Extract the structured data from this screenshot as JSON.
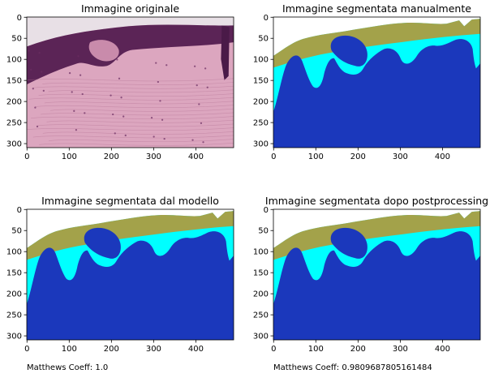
{
  "figure": {
    "colors": {
      "background": "#e8e0e6",
      "ground": "#1b38bc",
      "epidermis": "#00ffff",
      "surface": "#a3a24a",
      "tissue_light": "#dca6bf",
      "tissue_dark": "#5b2456"
    },
    "panels": [
      {
        "title": "Immagine originale",
        "kind": "photo",
        "xticks": [
          "0",
          "100",
          "200",
          "300",
          "400"
        ],
        "yticks": [
          "0",
          "50",
          "100",
          "150",
          "200",
          "250",
          "300"
        ],
        "caption": ""
      },
      {
        "title": "Immagine segmentata manualmente",
        "kind": "mask",
        "xticks": [
          "0",
          "100",
          "200",
          "300",
          "400"
        ],
        "yticks": [
          "0",
          "50",
          "100",
          "150",
          "200",
          "250",
          "300"
        ],
        "caption": ""
      },
      {
        "title": "Immagine segmentata dal modello",
        "kind": "mask",
        "xticks": [
          "0",
          "100",
          "200",
          "300",
          "400"
        ],
        "yticks": [
          "0",
          "50",
          "100",
          "150",
          "200",
          "250",
          "300"
        ],
        "caption": "Matthews Coeff: 1.0"
      },
      {
        "title": "Immagine segmentata dopo postprocessing",
        "kind": "mask",
        "xticks": [
          "0",
          "100",
          "200",
          "300",
          "400"
        ],
        "yticks": [
          "0",
          "50",
          "100",
          "150",
          "200",
          "250",
          "300"
        ],
        "caption": "Matthews Coeff: 0.9809687805161484"
      }
    ]
  }
}
